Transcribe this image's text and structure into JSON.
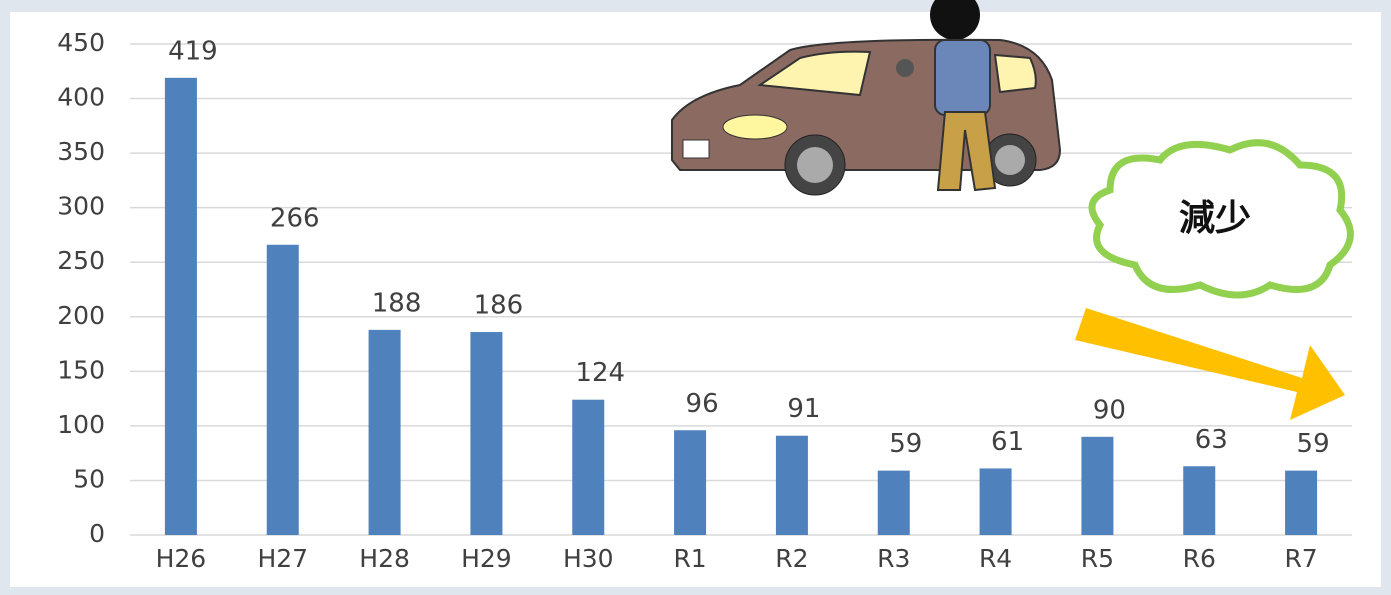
{
  "chart_data": {
    "type": "bar",
    "categories": [
      "H26",
      "H27",
      "H28",
      "H29",
      "H30",
      "R1",
      "R2",
      "R3",
      "R4",
      "R5",
      "R6",
      "R7"
    ],
    "values": [
      419,
      266,
      188,
      186,
      124,
      96,
      91,
      59,
      61,
      90,
      63,
      59
    ],
    "color": "#4f81bd",
    "ylim": [
      0,
      450
    ],
    "yticks": [
      0,
      50,
      100,
      150,
      200,
      250,
      300,
      350,
      400,
      450
    ],
    "grid": true,
    "annotation": "減少"
  }
}
